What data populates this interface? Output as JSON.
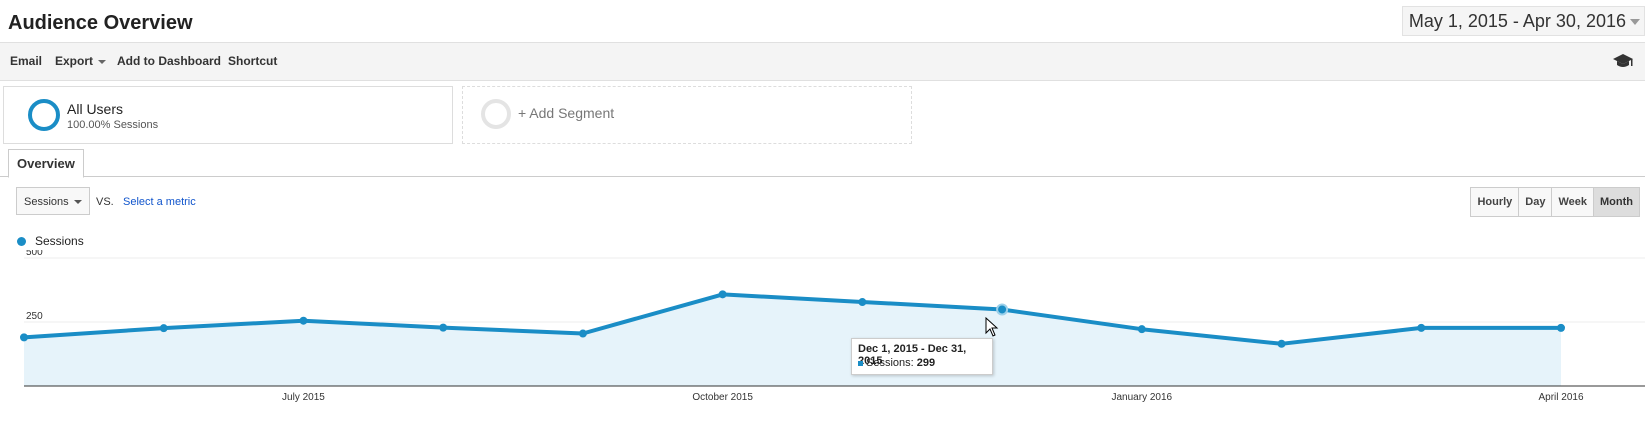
{
  "header": {
    "title": "Audience Overview",
    "date_range": "May 1, 2015 - Apr 30, 2016"
  },
  "toolbar": {
    "email": "Email",
    "export": "Export",
    "add_to_dashboard": "Add to Dashboard",
    "shortcut": "Shortcut",
    "icon": "graduation-cap-icon"
  },
  "segments": {
    "all_users": {
      "name": "All Users",
      "subtitle": "100.00% Sessions"
    },
    "add_segment": "+ Add Segment"
  },
  "tabs": {
    "overview": "Overview"
  },
  "controls": {
    "metric": "Sessions",
    "vs": "VS.",
    "select_metric": "Select a metric",
    "granularity": [
      "Hourly",
      "Day",
      "Week",
      "Month"
    ],
    "active_granularity": "Month"
  },
  "legend": {
    "label": "Sessions"
  },
  "colors": {
    "series": "#1a8dc6",
    "area": "#e6f3fa",
    "link": "#1155cc"
  },
  "chart_data": {
    "type": "area",
    "x": [
      "May 2015",
      "Jun 2015",
      "Jul 2015",
      "Aug 2015",
      "Sep 2015",
      "Oct 2015",
      "Nov 2015",
      "Dec 2015",
      "Jan 2016",
      "Feb 2016",
      "Mar 2016",
      "Apr 2016"
    ],
    "series": [
      {
        "name": "Sessions",
        "values": [
          190,
          226,
          255,
          228,
          205,
          358,
          328,
          299,
          222,
          165,
          227,
          227
        ]
      }
    ],
    "ylim": [
      0,
      500
    ],
    "yticks": [
      250,
      500
    ],
    "xtick_labels": [
      "July 2015",
      "October 2015",
      "January 2016",
      "April 2016"
    ],
    "xtick_indices": [
      2,
      5,
      8,
      11
    ],
    "grid": true
  },
  "tooltip": {
    "title": "Dec 1, 2015 - Dec 31, 2015",
    "label": "Sessions:",
    "value": "299"
  }
}
